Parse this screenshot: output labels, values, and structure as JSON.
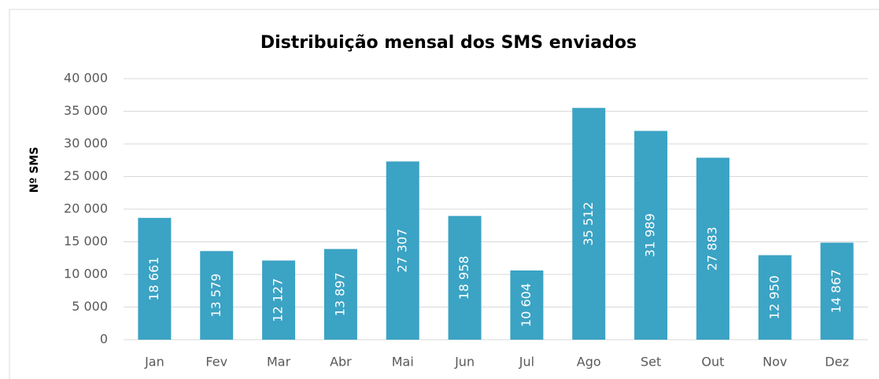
{
  "chart_data": {
    "type": "bar",
    "title": "Distribuição mensal dos SMS enviados",
    "y_label": "Nº SMS",
    "categories": [
      "Jan",
      "Fev",
      "Mar",
      "Abr",
      "Mai",
      "Jun",
      "Jul",
      "Ago",
      "Set",
      "Out",
      "Nov",
      "Dez"
    ],
    "values": [
      18661,
      13579,
      12127,
      13897,
      27307,
      18958,
      10604,
      35512,
      31989,
      27883,
      12950,
      14867
    ],
    "value_labels": [
      "18 661",
      "13 579",
      "12 127",
      "13 897",
      "27 307",
      "18 958",
      "10 604",
      "35 512",
      "31 989",
      "27 883",
      "12 950",
      "14 867"
    ],
    "color": "#3ba3c4",
    "ylim": [
      0,
      40000
    ],
    "yticks": [
      0,
      {
        "value": 5000,
        "label": "5 000"
      },
      {
        "value": 10000,
        "label": "10 000"
      },
      {
        "value": 15000,
        "label": "15 000"
      },
      {
        "value": 20000,
        "label": "20 000"
      },
      {
        "value": 25000,
        "label": "25 000"
      },
      {
        "value": 30000,
        "label": "30 000"
      },
      {
        "value": 35000,
        "label": "35 000"
      },
      {
        "value": 40000,
        "label": "40 000"
      }
    ],
    "grid": true
  }
}
